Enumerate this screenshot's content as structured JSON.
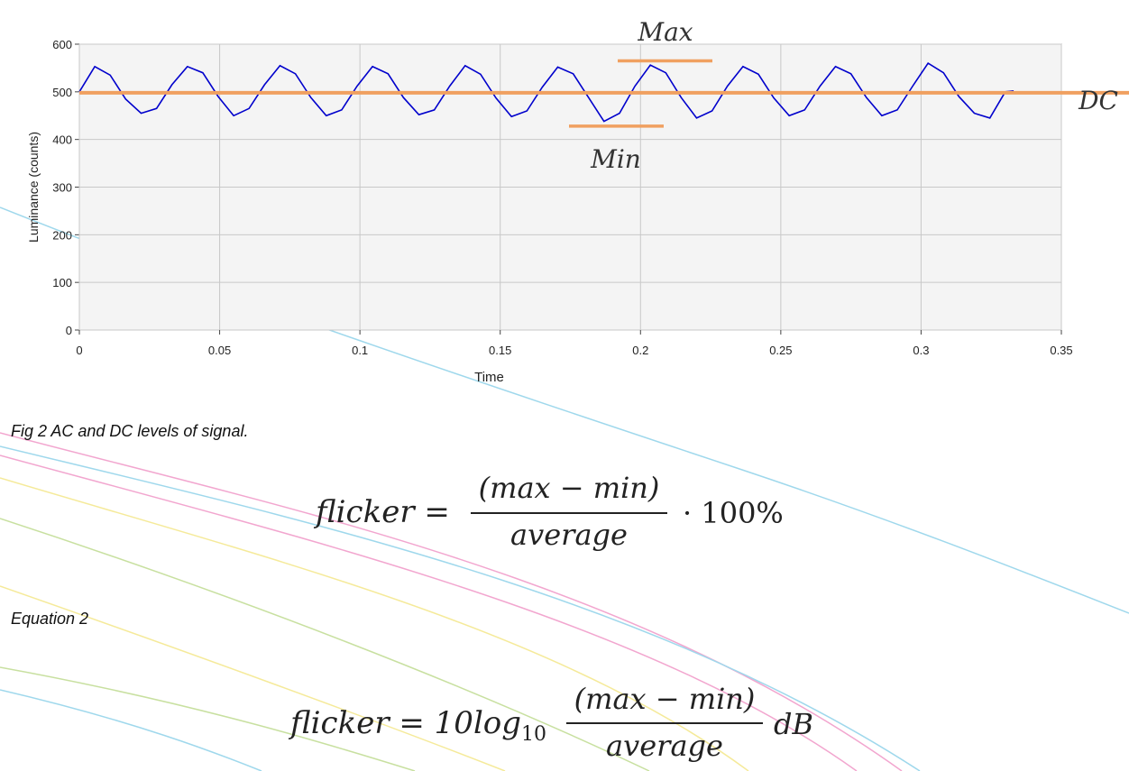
{
  "chart_data": {
    "type": "line",
    "title": "",
    "xlabel": "Time",
    "ylabel": "Luminance (counts)",
    "xlim": [
      0,
      0.35
    ],
    "ylim": [
      0,
      600
    ],
    "x_ticks": [
      "0",
      "0.05",
      "0.1",
      "0.15",
      "0.2",
      "0.25",
      "0.3",
      "0.35"
    ],
    "y_ticks": [
      "0",
      "100",
      "200",
      "300",
      "400",
      "500",
      "600"
    ],
    "grid": true,
    "series": [
      {
        "name": "",
        "color": "#0000cc",
        "x": [
          0,
          0.0055,
          0.011,
          0.0165,
          0.022,
          0.0275,
          0.033,
          0.0385,
          0.044,
          0.0495,
          0.055,
          0.0605,
          0.066,
          0.0715,
          0.077,
          0.0825,
          0.088,
          0.0935,
          0.099,
          0.1045,
          0.11,
          0.1155,
          0.121,
          0.1265,
          0.132,
          0.1375,
          0.143,
          0.1485,
          0.154,
          0.1595,
          0.165,
          0.1705,
          0.176,
          0.1815,
          0.187,
          0.1925,
          0.198,
          0.2035,
          0.209,
          0.2145,
          0.22,
          0.2255,
          0.231,
          0.2365,
          0.242,
          0.2475,
          0.253,
          0.2585,
          0.264,
          0.2695,
          0.275,
          0.2805,
          0.286,
          0.2915,
          0.297,
          0.3025,
          0.308,
          0.3135,
          0.319,
          0.3245,
          0.33,
          0.333
        ],
        "y": [
          500,
          553,
          535,
          485,
          455,
          465,
          515,
          553,
          540,
          490,
          450,
          465,
          515,
          555,
          538,
          488,
          450,
          462,
          512,
          553,
          538,
          488,
          452,
          462,
          512,
          555,
          537,
          487,
          448,
          460,
          510,
          552,
          538,
          488,
          438,
          455,
          512,
          556,
          540,
          488,
          445,
          460,
          512,
          553,
          537,
          487,
          450,
          462,
          512,
          553,
          538,
          488,
          450,
          462,
          512,
          560,
          540,
          490,
          455,
          445,
          500,
          502
        ]
      }
    ],
    "annotations": [
      {
        "text": "Max",
        "value": 565
      },
      {
        "text": "Min",
        "value": 428
      },
      {
        "text": "DC",
        "value": 498
      }
    ],
    "colors": {
      "signal": "#0000cc",
      "markers": "#f0a060",
      "plot_bg": "#f4f4f4"
    }
  },
  "caption_fig": "Fig 2 AC and DC levels of signal.",
  "caption_eq": "Equation 2",
  "eq1": {
    "lhs": "flicker =",
    "numerator": "(max − min)",
    "denominator": "average",
    "rhs": "· 100%"
  },
  "eq2": {
    "lhs": "flicker = 10log",
    "sub": "10",
    "numerator": "(max − min)",
    "denominator": "average",
    "rhs": "dB"
  }
}
